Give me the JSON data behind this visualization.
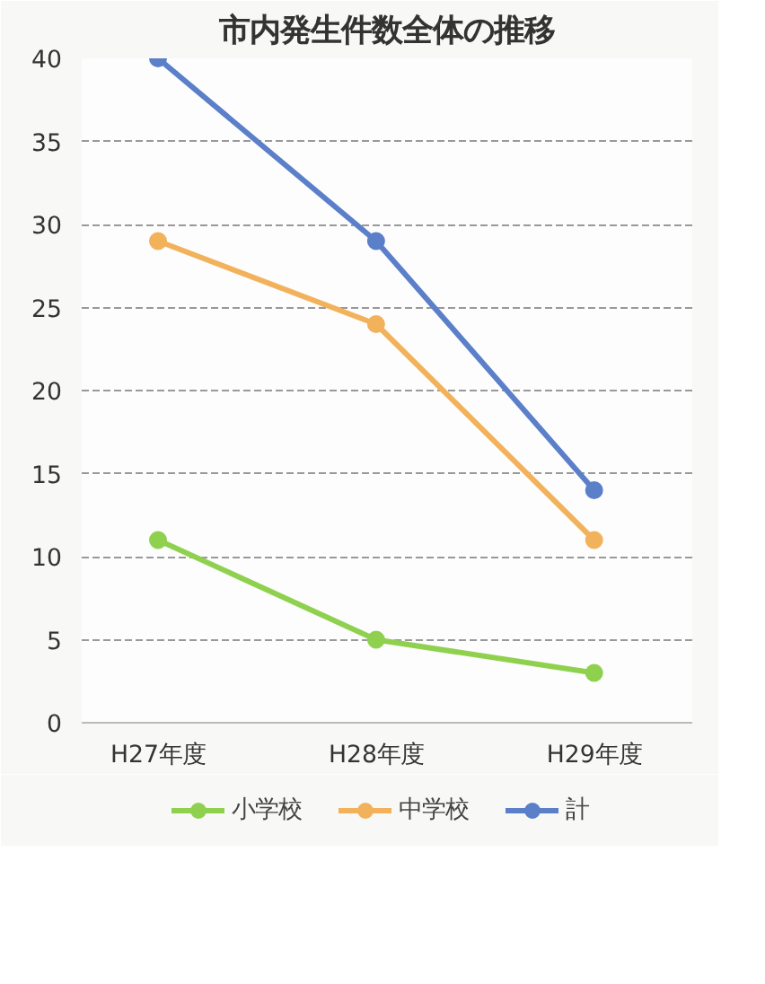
{
  "chart_data": {
    "type": "line",
    "title": "市内発生件数全体の推移",
    "categories": [
      "H27年度",
      "H28年度",
      "H29年度"
    ],
    "series": [
      {
        "name": "小学校",
        "color": "#8fd14f",
        "values": [
          11,
          5,
          3
        ]
      },
      {
        "name": "中学校",
        "color": "#f2b25c",
        "values": [
          29,
          24,
          11
        ]
      },
      {
        "name": "計",
        "color": "#5b7fc9",
        "values": [
          40,
          29,
          14
        ]
      }
    ],
    "ylim": [
      0,
      40
    ],
    "yticks": [
      0,
      5,
      10,
      15,
      20,
      25,
      30,
      35,
      40
    ],
    "grid": "y",
    "legend": "bottom",
    "marker": "circle",
    "line_style": "solid"
  }
}
